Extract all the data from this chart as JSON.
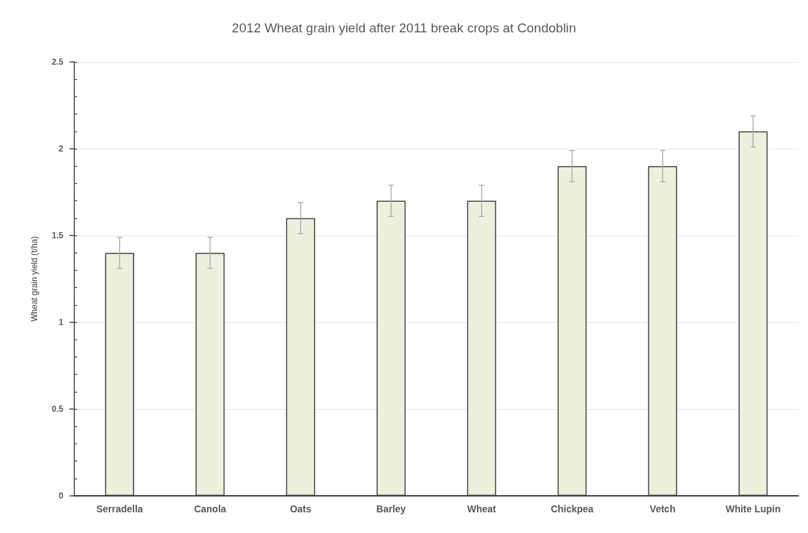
{
  "chart_data": {
    "type": "bar",
    "title": "2012 Wheat grain yield after 2011 break crops at Condoblin",
    "ylabel": "Wheat grain yield (t/ha)",
    "categories": [
      "Serradella",
      "Canola",
      "Oats",
      "Barley",
      "Wheat",
      "Chickpea",
      "Vetch",
      "White Lupin"
    ],
    "values": [
      1.4,
      1.4,
      1.6,
      1.7,
      1.7,
      1.9,
      1.9,
      2.1
    ],
    "errors": [
      0.09,
      0.09,
      0.09,
      0.09,
      0.09,
      0.09,
      0.09,
      0.09
    ],
    "color": "#ebf1de",
    "ylim": [
      0,
      2.5
    ],
    "yticks": [
      0,
      {
        "value": 0.1,
        "label": null
      },
      {
        "value": 0.2,
        "label": null
      },
      {
        "value": 0.3,
        "label": null
      },
      {
        "value": 0.4,
        "label": null
      },
      0.5,
      {
        "value": 0.6,
        "label": null
      },
      {
        "value": 0.7,
        "label": null
      },
      {
        "value": 0.8,
        "label": null
      },
      {
        "value": 0.9,
        "label": null
      },
      1,
      {
        "value": 1.1,
        "label": null
      },
      {
        "value": 1.2,
        "label": null
      },
      {
        "value": 1.3,
        "label": null
      },
      {
        "value": 1.4,
        "label": null
      },
      1.5,
      {
        "value": 1.6,
        "label": null
      },
      {
        "value": 1.7,
        "label": null
      },
      {
        "value": 1.8,
        "label": null
      },
      {
        "value": 1.9,
        "label": null
      },
      2,
      {
        "value": 2.1,
        "label": null
      },
      {
        "value": 2.2,
        "label": null
      },
      {
        "value": 2.3,
        "label": null
      },
      {
        "value": 2.4,
        "label": null
      },
      2.5
    ],
    "grid": "y"
  }
}
